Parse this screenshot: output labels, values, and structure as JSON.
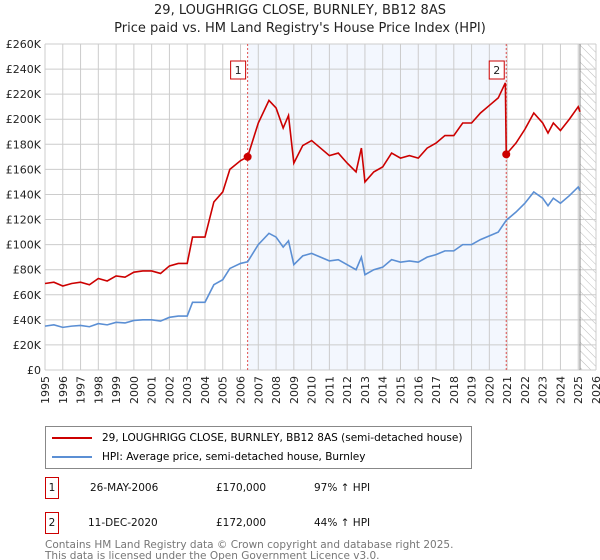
{
  "chart_data": {
    "type": "line",
    "title": "29, LOUGHRIGG CLOSE, BURNLEY, BB12 8AS",
    "subtitle": "Price paid vs. HM Land Registry's House Price Index (HPI)",
    "xlim": [
      1995,
      2026
    ],
    "ylim": [
      0,
      260000
    ],
    "yticks": [
      0,
      20000,
      40000,
      60000,
      80000,
      100000,
      120000,
      140000,
      160000,
      180000,
      200000,
      220000,
      240000,
      260000
    ],
    "ytick_labels": [
      "£0",
      "£20K",
      "£40K",
      "£60K",
      "£80K",
      "£100K",
      "£120K",
      "£140K",
      "£160K",
      "£180K",
      "£200K",
      "£220K",
      "£240K",
      "£260K"
    ],
    "xticks": [
      1995,
      1996,
      1997,
      1998,
      1999,
      2000,
      2001,
      2002,
      2003,
      2004,
      2005,
      2006,
      2007,
      2008,
      2009,
      2010,
      2011,
      2012,
      2013,
      2014,
      2015,
      2016,
      2017,
      2018,
      2019,
      2020,
      2021,
      2022,
      2023,
      2024,
      2025,
      2026
    ],
    "grid": true,
    "shaded_range": [
      2006.4,
      2020.95
    ],
    "future_hatch_from": 2025.1,
    "series": [
      {
        "name": "29, LOUGHRIGG CLOSE, BURNLEY, BB12 8AS (semi-detached house)",
        "color": "#cc0000",
        "points": [
          [
            1995,
            69
          ],
          [
            1995.5,
            70
          ],
          [
            1996,
            67
          ],
          [
            1996.5,
            69
          ],
          [
            1997,
            70
          ],
          [
            1997.5,
            68
          ],
          [
            1998,
            73
          ],
          [
            1998.5,
            71
          ],
          [
            1999,
            75
          ],
          [
            1999.5,
            74
          ],
          [
            2000,
            78
          ],
          [
            2000.5,
            79
          ],
          [
            2001,
            79
          ],
          [
            2001.5,
            77
          ],
          [
            2002,
            83
          ],
          [
            2002.5,
            85
          ],
          [
            2003,
            85
          ],
          [
            2003.3,
            106
          ],
          [
            2003.8,
            106
          ],
          [
            2004,
            106
          ],
          [
            2004.5,
            134
          ],
          [
            2005,
            142
          ],
          [
            2005.4,
            160
          ],
          [
            2006,
            167
          ],
          [
            2006.4,
            170
          ],
          [
            2007,
            197
          ],
          [
            2007.6,
            215
          ],
          [
            2008,
            209
          ],
          [
            2008.4,
            193
          ],
          [
            2008.7,
            203
          ],
          [
            2009,
            165
          ],
          [
            2009.5,
            179
          ],
          [
            2010,
            183
          ],
          [
            2010.5,
            177
          ],
          [
            2011,
            171
          ],
          [
            2011.5,
            173
          ],
          [
            2012,
            165
          ],
          [
            2012.5,
            158
          ],
          [
            2012.8,
            177
          ],
          [
            2013,
            150
          ],
          [
            2013.5,
            158
          ],
          [
            2014,
            162
          ],
          [
            2014.5,
            173
          ],
          [
            2015,
            169
          ],
          [
            2015.5,
            171
          ],
          [
            2016,
            169
          ],
          [
            2016.5,
            177
          ],
          [
            2017,
            181
          ],
          [
            2017.5,
            187
          ],
          [
            2018,
            187
          ],
          [
            2018.5,
            197
          ],
          [
            2019,
            197
          ],
          [
            2019.5,
            205
          ],
          [
            2020,
            211
          ],
          [
            2020.5,
            217
          ],
          [
            2020.9,
            229
          ],
          [
            2020.95,
            172
          ],
          [
            2021.5,
            181
          ],
          [
            2022,
            192
          ],
          [
            2022.5,
            205
          ],
          [
            2023,
            197
          ],
          [
            2023.3,
            189
          ],
          [
            2023.6,
            197
          ],
          [
            2024,
            191
          ],
          [
            2024.5,
            200
          ],
          [
            2025,
            210
          ],
          [
            2025.1,
            206
          ]
        ]
      },
      {
        "name": "HPI: Average price, semi-detached house, Burnley",
        "color": "#5b8fd4",
        "points": [
          [
            1995,
            35
          ],
          [
            1995.5,
            36
          ],
          [
            1996,
            34
          ],
          [
            1996.5,
            35
          ],
          [
            1997,
            35.5
          ],
          [
            1997.5,
            34.5
          ],
          [
            1998,
            37
          ],
          [
            1998.5,
            36
          ],
          [
            1999,
            38
          ],
          [
            1999.5,
            37.5
          ],
          [
            2000,
            39.5
          ],
          [
            2000.5,
            40
          ],
          [
            2001,
            40
          ],
          [
            2001.5,
            39
          ],
          [
            2002,
            42
          ],
          [
            2002.5,
            43
          ],
          [
            2003,
            43
          ],
          [
            2003.3,
            54
          ],
          [
            2003.8,
            54
          ],
          [
            2004,
            54
          ],
          [
            2004.5,
            68
          ],
          [
            2005,
            72
          ],
          [
            2005.4,
            81
          ],
          [
            2006,
            85
          ],
          [
            2006.4,
            86.3
          ],
          [
            2007,
            100
          ],
          [
            2007.6,
            109
          ],
          [
            2008,
            106
          ],
          [
            2008.4,
            98
          ],
          [
            2008.7,
            103
          ],
          [
            2009,
            84
          ],
          [
            2009.5,
            91
          ],
          [
            2010,
            93
          ],
          [
            2010.5,
            90
          ],
          [
            2011,
            87
          ],
          [
            2011.5,
            88
          ],
          [
            2012,
            84
          ],
          [
            2012.5,
            80
          ],
          [
            2012.8,
            90
          ],
          [
            2013,
            76
          ],
          [
            2013.5,
            80
          ],
          [
            2014,
            82
          ],
          [
            2014.5,
            88
          ],
          [
            2015,
            86
          ],
          [
            2015.5,
            87
          ],
          [
            2016,
            86
          ],
          [
            2016.5,
            90
          ],
          [
            2017,
            92
          ],
          [
            2017.5,
            95
          ],
          [
            2018,
            95
          ],
          [
            2018.5,
            100
          ],
          [
            2019,
            100
          ],
          [
            2019.5,
            104
          ],
          [
            2020,
            107
          ],
          [
            2020.5,
            110
          ],
          [
            2020.95,
            119.4
          ],
          [
            2021.5,
            126
          ],
          [
            2022,
            133
          ],
          [
            2022.5,
            142
          ],
          [
            2023,
            137
          ],
          [
            2023.3,
            131
          ],
          [
            2023.6,
            137
          ],
          [
            2024,
            133
          ],
          [
            2024.5,
            139
          ],
          [
            2025,
            146
          ],
          [
            2025.1,
            143
          ]
        ]
      }
    ],
    "y_unit_multiplier": 1000,
    "annotations": [
      {
        "label": "1",
        "x": 2006.4,
        "y": 170000
      },
      {
        "label": "2",
        "x": 2020.95,
        "y": 172000
      }
    ]
  },
  "legend": {
    "items": [
      "29, LOUGHRIGG CLOSE, BURNLEY, BB12 8AS (semi-detached house)",
      "HPI: Average price, semi-detached house, Burnley"
    ]
  },
  "sales": [
    {
      "num": "1",
      "date": "26-MAY-2006",
      "price": "£170,000",
      "hpi": "97% ↑ HPI"
    },
    {
      "num": "2",
      "date": "11-DEC-2020",
      "price": "£172,000",
      "hpi": "44% ↑ HPI"
    }
  ],
  "footer": {
    "line1": "Contains HM Land Registry data © Crown copyright and database right 2025.",
    "line2": "This data is licensed under the Open Government Licence v3.0."
  }
}
